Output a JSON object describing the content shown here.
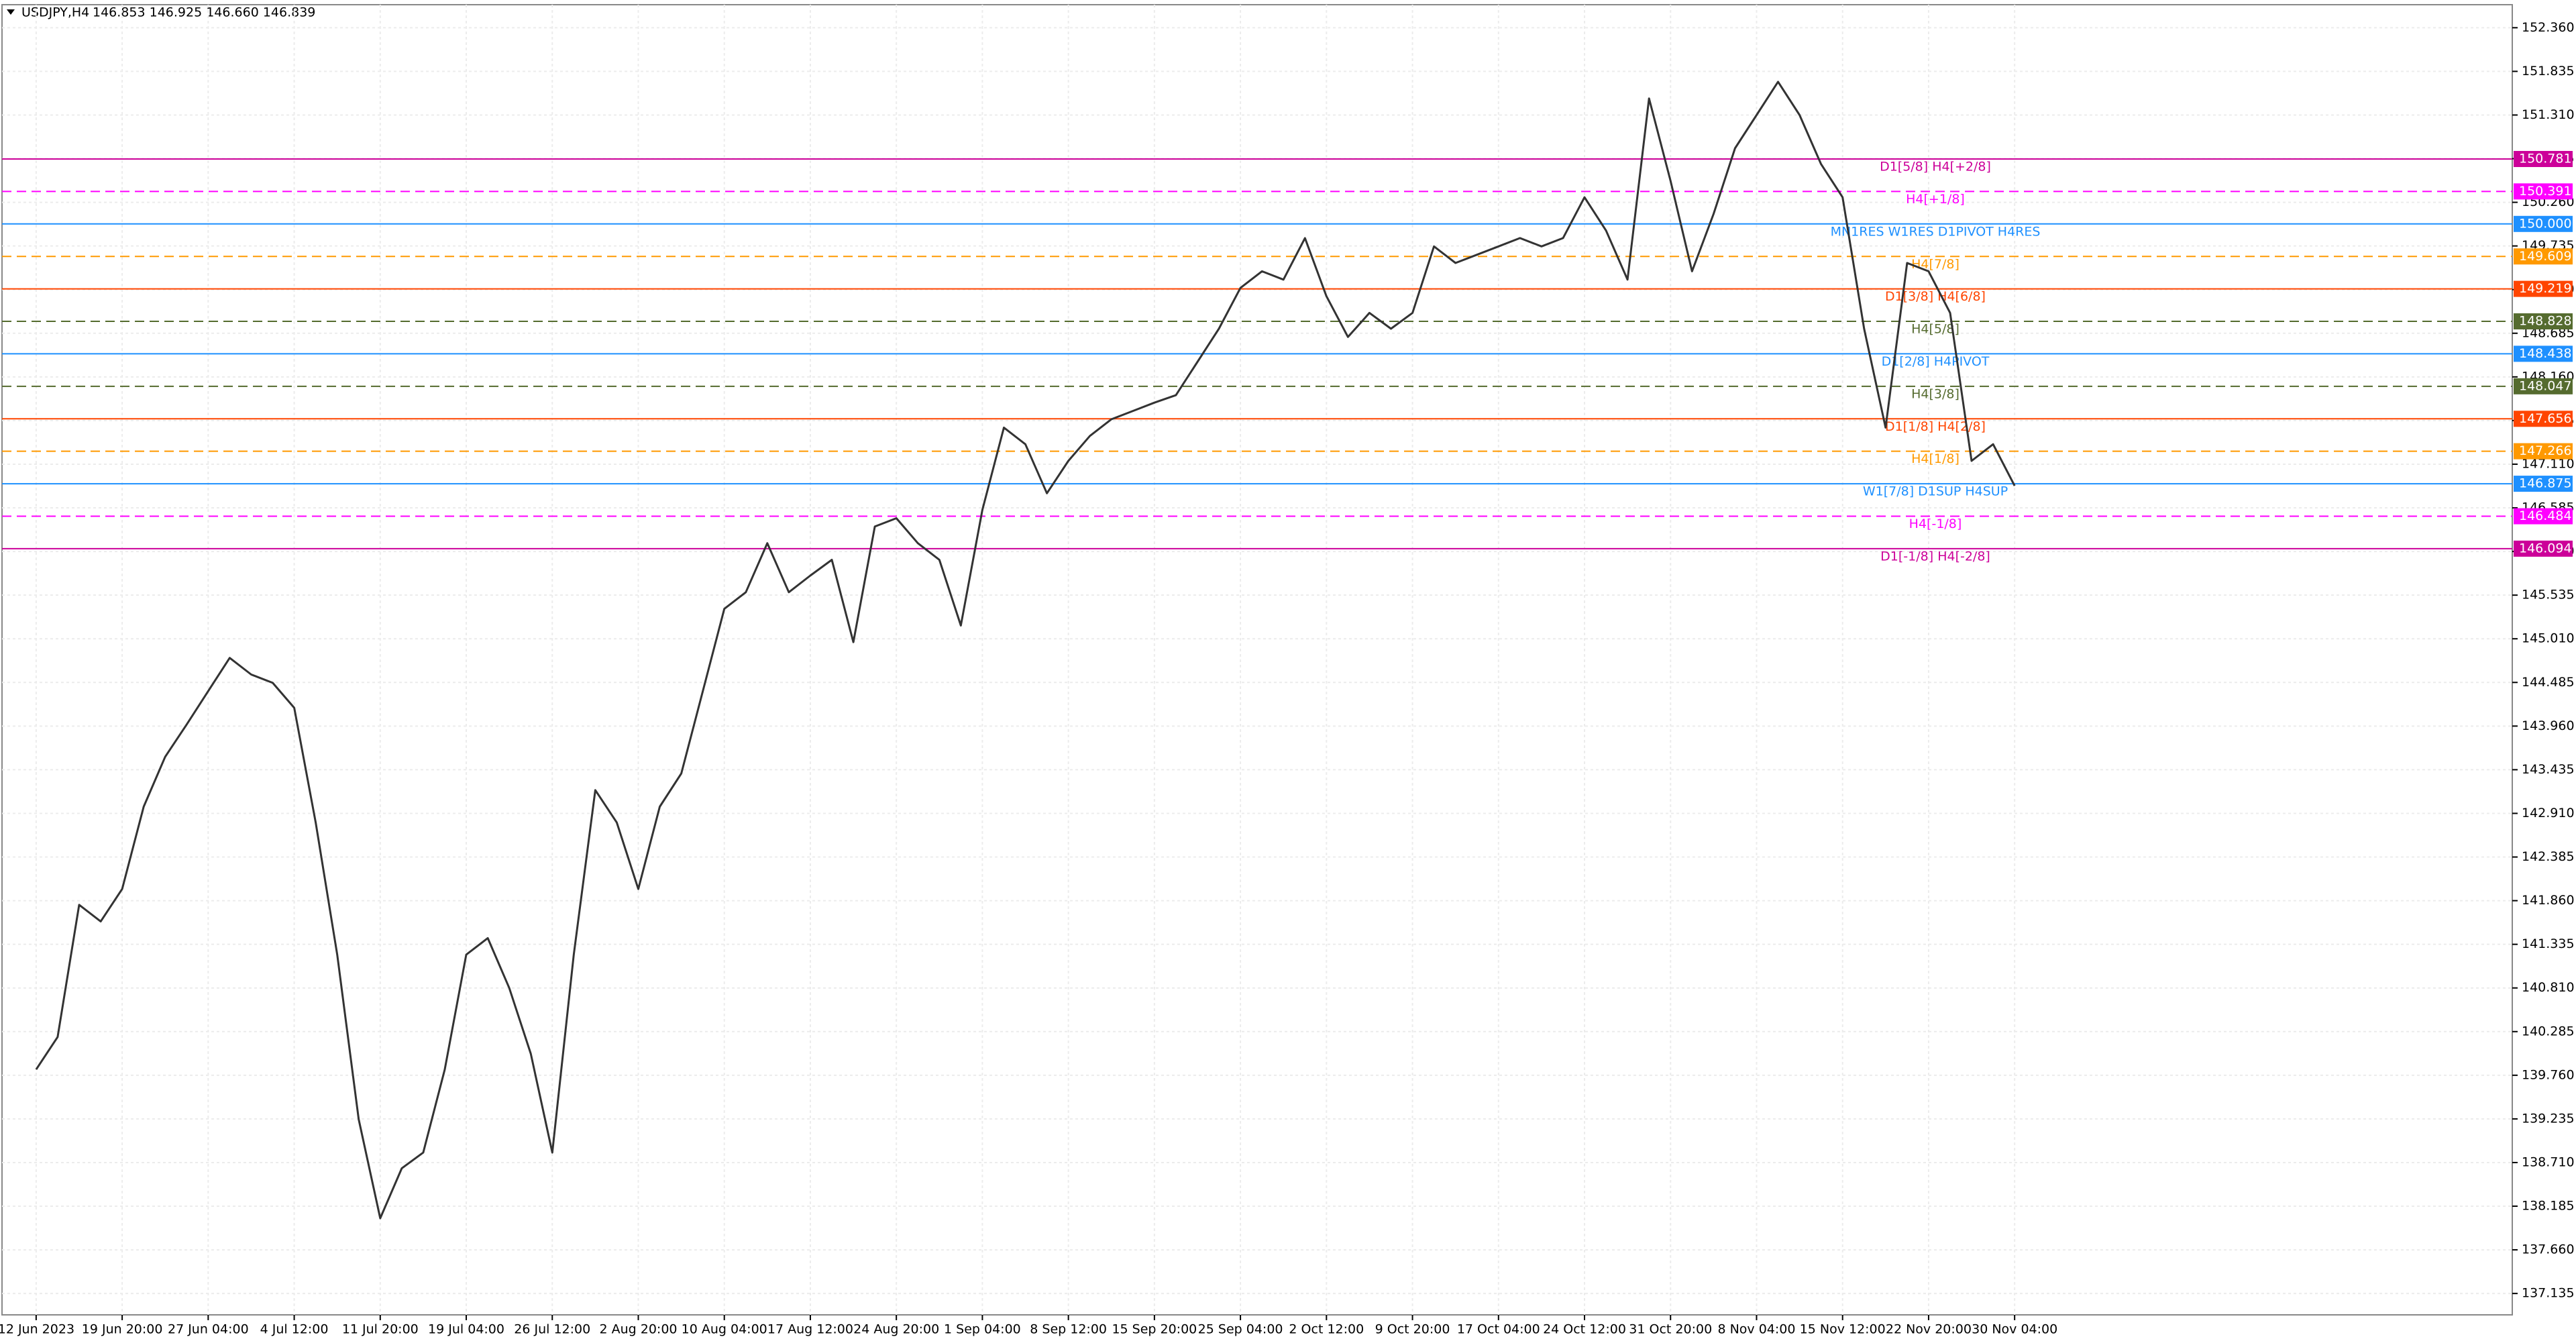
{
  "chart_data": {
    "type": "line",
    "title": "USDJPY,H4",
    "subtitle": "146.853 146.925 146.660 146.839",
    "color": "#333333",
    "categories": [
      "12 Jun 2023",
      null,
      null,
      null,
      "19 Jun 20:00",
      null,
      null,
      null,
      "27 Jun 04:00",
      null,
      null,
      null,
      "4 Jul 12:00",
      null,
      null,
      null,
      "11 Jul 20:00",
      null,
      null,
      null,
      "19 Jul 04:00",
      null,
      null,
      null,
      "26 Jul 12:00",
      null,
      null,
      null,
      "2 Aug 20:00",
      null,
      null,
      null,
      "10 Aug 04:00",
      null,
      null,
      null,
      "17 Aug 12:00",
      null,
      null,
      null,
      "24 Aug 20:00",
      null,
      null,
      null,
      "1 Sep 04:00",
      null,
      null,
      null,
      "8 Sep 12:00",
      null,
      null,
      null,
      "15 Sep 20:00",
      null,
      null,
      null,
      "25 Sep 04:00",
      null,
      null,
      null,
      "2 Oct 12:00",
      null,
      null,
      null,
      "9 Oct 20:00",
      null,
      null,
      null,
      "17 Oct 04:00",
      null,
      null,
      null,
      "24 Oct 12:00",
      null,
      null,
      null,
      "31 Oct 20:00",
      null,
      null,
      null,
      "8 Nov 04:00",
      null,
      null,
      null,
      "15 Nov 12:00",
      null,
      null,
      null,
      "22 Nov 20:00",
      null,
      null,
      null,
      "30 Nov 04:00"
    ],
    "values": [
      139.83,
      140.22,
      141.81,
      141.61,
      142.0,
      142.99,
      143.59,
      143.98,
      144.38,
      144.78,
      144.58,
      144.48,
      144.18,
      142.8,
      141.21,
      139.23,
      138.04,
      138.64,
      138.83,
      139.83,
      141.21,
      141.41,
      140.81,
      140.02,
      138.83,
      141.21,
      143.19,
      142.8,
      142.0,
      142.99,
      143.39,
      144.38,
      145.37,
      145.57,
      146.16,
      145.57,
      145.77,
      145.96,
      144.97,
      146.36,
      146.46,
      146.16,
      145.96,
      145.17,
      146.56,
      147.55,
      147.35,
      146.76,
      147.15,
      147.45,
      147.65,
      147.75,
      147.85,
      147.94,
      148.34,
      148.74,
      149.23,
      149.43,
      149.33,
      149.83,
      149.13,
      148.64,
      148.93,
      148.74,
      148.93,
      149.73,
      149.53,
      149.63,
      149.73,
      149.83,
      149.73,
      149.83,
      150.32,
      149.92,
      149.33,
      151.51,
      150.52,
      149.43,
      150.12,
      150.91,
      151.31,
      151.71,
      151.31,
      150.72,
      150.32,
      148.74,
      147.55,
      149.53,
      149.43,
      148.93,
      147.15,
      147.35,
      146.85
    ],
    "ylim": [
      136.878,
      152.637
    ],
    "yticks": [
      {
        "value": 152.36,
        "label": "152.360"
      },
      151.835,
      {
        "value": 151.31,
        "label": "151.310"
      },
      150.785,
      {
        "value": 150.26,
        "label": "150.260"
      },
      149.735,
      {
        "value": 149.21,
        "label": "149.210"
      },
      148.685,
      {
        "value": 148.16,
        "label": "148.160"
      },
      147.635,
      {
        "value": 147.11,
        "label": "147.110"
      },
      146.585,
      {
        "value": 146.06,
        "label": "146.060"
      },
      145.535,
      {
        "value": 145.01,
        "label": "145.010"
      },
      144.485,
      {
        "value": 143.96,
        "label": "143.960"
      },
      143.435,
      {
        "value": 142.91,
        "label": "142.910"
      },
      142.385,
      {
        "value": 141.86,
        "label": "141.860"
      },
      141.335,
      {
        "value": 140.81,
        "label": "140.810"
      },
      140.285,
      {
        "value": 139.76,
        "label": "139.760"
      },
      139.235,
      {
        "value": 138.71,
        "label": "138.710"
      },
      138.185,
      {
        "value": 137.66,
        "label": "137.660"
      },
      137.135
    ],
    "grid": true,
    "levels": [
      {
        "price": 150.781,
        "label": "D1[5/8] H4[+2/8]",
        "color": "#cc0099",
        "dashed": false
      },
      {
        "price": 150.391,
        "label": "H4[+1/8]",
        "color": "#ff00ff",
        "dashed": true
      },
      {
        "price": {
          "value": 150,
          "label": "150.000"
        },
        "label": "MN1RES W1RES D1PIVOT H4RES",
        "color": "#1e90ff",
        "dashed": false
      },
      {
        "price": 149.609,
        "label": "H4[7/8]",
        "color": "#ff9900",
        "dashed": true
      },
      {
        "price": 149.219,
        "label": "D1[3/8] H4[6/8]",
        "color": "#ff4500",
        "dashed": false
      },
      {
        "price": 148.828,
        "label": "H4[5/8]",
        "color": "#556b2f",
        "dashed": true
      },
      {
        "price": 148.438,
        "label": "D1[2/8] H4PIVOT",
        "color": "#1e90ff",
        "dashed": false
      },
      {
        "price": 148.047,
        "label": "H4[3/8]",
        "color": "#556b2f",
        "dashed": true
      },
      {
        "price": 147.656,
        "label": "D1[1/8] H4[2/8]",
        "color": "#ff4500",
        "dashed": false
      },
      {
        "price": 147.266,
        "label": "H4[1/8]",
        "color": "#ff9900",
        "dashed": true
      },
      {
        "price": 146.875,
        "label": "W1[7/8] D1SUP H4SUP",
        "color": "#1e90ff",
        "dashed": false
      },
      {
        "price": 146.484,
        "label": "H4[-1/8]",
        "color": "#ff00ff",
        "dashed": true
      },
      {
        "price": 146.094,
        "label": "D1[-1/8] H4[-2/8]",
        "color": "#cc0099",
        "dashed": false
      }
    ]
  }
}
